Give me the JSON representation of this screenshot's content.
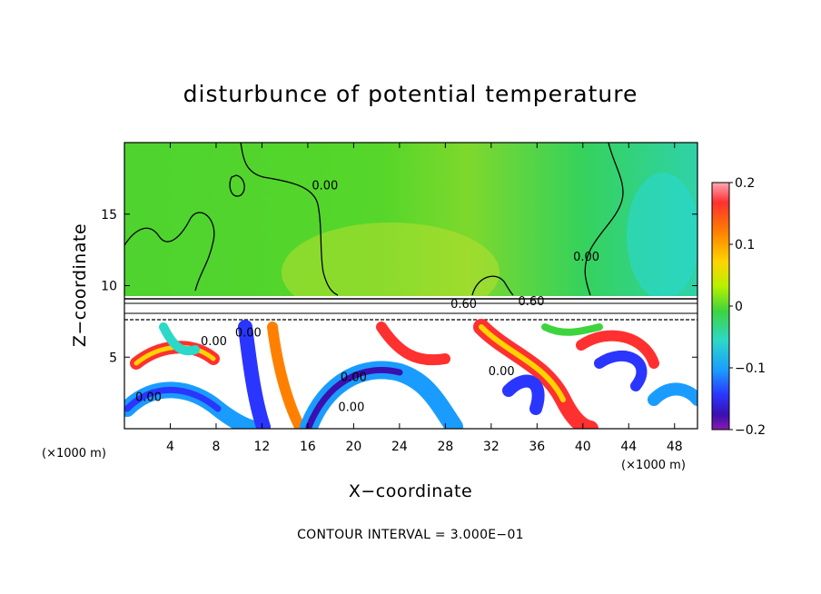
{
  "chart_data": {
    "type": "heatmap",
    "title": "disturbunce of potential temperature",
    "xlabel": "X−coordinate",
    "ylabel": "Z−coordinate",
    "x_unit": "(×1000 m)",
    "x_unit_right": "(×1000 m)",
    "xlim": [
      0,
      50
    ],
    "ylim": [
      0,
      20
    ],
    "x_ticks": [
      4,
      8,
      12,
      16,
      20,
      24,
      28,
      32,
      36,
      40,
      44,
      48
    ],
    "x_tick_labels": [
      "4",
      "8",
      "12",
      "16",
      "20",
      "24",
      "28",
      "32",
      "36",
      "40",
      "44",
      "48"
    ],
    "y_ticks": [
      5,
      10,
      15
    ],
    "y_tick_labels": [
      "5",
      "10",
      "15"
    ],
    "colorbar": {
      "range": [
        -0.2,
        0.2
      ],
      "tick_values": [
        0.2,
        0.1,
        0,
        -0.1,
        -0.2
      ],
      "tick_labels": [
        "0.2",
        "0.1",
        "0",
        "−0.1",
        "−0.2"
      ],
      "colors": [
        "#ff9aa8",
        "#ff2a2a",
        "#ff7a00",
        "#ffd000",
        "#c4f000",
        "#3ed43e",
        "#2cd8c8",
        "#1a9cff",
        "#2a35ff",
        "#4a12b8",
        "#8a1ab0"
      ]
    },
    "contour_labels": [
      {
        "text": "0.00",
        "x": 17.5,
        "z": 17.0
      },
      {
        "text": "0.00",
        "x": 40.3,
        "z": 12.0
      },
      {
        "text": "0.60",
        "x": 29.6,
        "z": 8.7
      },
      {
        "text": "0.60",
        "x": 35.5,
        "z": 8.9
      },
      {
        "text": "0.00",
        "x": 2.1,
        "z": 2.2
      },
      {
        "text": "0.00",
        "x": 20.0,
        "z": 3.6
      },
      {
        "text": "0.00",
        "x": 19.8,
        "z": 1.5
      },
      {
        "text": "0.00",
        "x": 32.9,
        "z": 4.0
      },
      {
        "text": "0.00",
        "x": 7.8,
        "z": 6.1
      },
      {
        "text": "0.00",
        "x": 10.8,
        "z": 6.7
      }
    ],
    "note": "CONTOUR INTERVAL = 3.000E−01"
  }
}
